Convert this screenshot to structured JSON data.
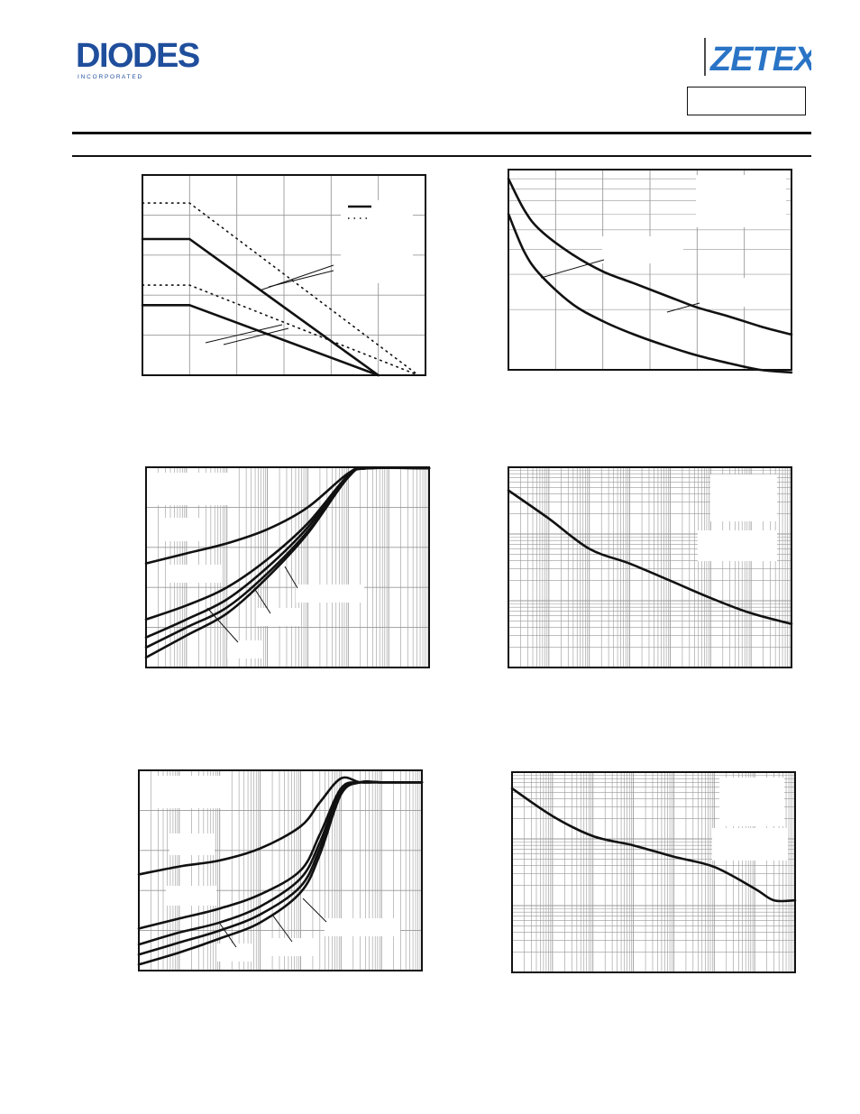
{
  "header": {
    "brand_left": "DIODES",
    "brand_left_sub": "I N C O R P O R A T E D",
    "brand_right": "ZETEX"
  },
  "colors": {
    "ink": "#111111",
    "grid": "#999999",
    "paper": "#ffffff"
  },
  "chart_data": [
    {
      "type": "line",
      "title": "",
      "xlabel": "",
      "ylabel": "",
      "x_scale": "linear",
      "y_scale": "linear",
      "grid": true,
      "legend": {
        "position": "top-right",
        "entries": [
          {
            "style": "solid"
          },
          {
            "style": "dotted"
          }
        ]
      },
      "xlim": [
        0,
        6
      ],
      "ylim": [
        0,
        5
      ],
      "series": [
        {
          "style": "dotted",
          "points": [
            [
              0,
              4.3
            ],
            [
              1,
              4.3
            ],
            [
              5.85,
              0
            ]
          ]
        },
        {
          "style": "solid",
          "points": [
            [
              0,
              3.4
            ],
            [
              1,
              3.4
            ],
            [
              5,
              0
            ]
          ]
        },
        {
          "style": "dotted",
          "points": [
            [
              0,
              2.25
            ],
            [
              1,
              2.25
            ],
            [
              5.85,
              0
            ]
          ]
        },
        {
          "style": "solid",
          "points": [
            [
              0,
              1.75
            ],
            [
              1,
              1.75
            ],
            [
              5,
              0
            ]
          ]
        }
      ]
    },
    {
      "type": "line",
      "title": "",
      "xlabel": "",
      "ylabel": "",
      "x_scale": "linear",
      "y_scale": "log",
      "grid": true,
      "xlim": [
        0,
        9
      ],
      "ylim": [
        1,
        10
      ],
      "series": [
        {
          "style": "solid",
          "points": [
            [
              0,
              9
            ],
            [
              0.5,
              6.3
            ],
            [
              1,
              5.0
            ],
            [
              2,
              3.8
            ],
            [
              3,
              3.1
            ],
            [
              4,
              2.7
            ],
            [
              5,
              2.35
            ],
            [
              6,
              2.05
            ],
            [
              7,
              1.85
            ],
            [
              8,
              1.65
            ],
            [
              9,
              1.5
            ]
          ]
        },
        {
          "style": "solid",
          "points": [
            [
              0,
              6
            ],
            [
              0.5,
              3.9
            ],
            [
              1,
              3.0
            ],
            [
              2,
              2.15
            ],
            [
              3,
              1.75
            ],
            [
              4,
              1.5
            ],
            [
              5,
              1.32
            ],
            [
              6,
              1.18
            ],
            [
              7,
              1.08
            ],
            [
              8,
              1.0
            ],
            [
              9,
              0.97
            ]
          ]
        }
      ]
    },
    {
      "type": "line",
      "title": "",
      "xlabel": "",
      "ylabel": "",
      "x_scale": "log",
      "y_scale": "linear",
      "grid": true,
      "xlim": [
        0.0001,
        1000
      ],
      "ylim": [
        0,
        100
      ],
      "series": [
        {
          "style": "solid",
          "points": [
            [
              0.0001,
              52
            ],
            [
              0.001,
              57
            ],
            [
              0.01,
              62
            ],
            [
              0.1,
              69
            ],
            [
              1,
              80
            ],
            [
              10,
              97
            ],
            [
              30,
              99.5
            ],
            [
              1000,
              99.5
            ]
          ]
        },
        {
          "style": "solid",
          "points": [
            [
              0.0001,
              24
            ],
            [
              0.001,
              31
            ],
            [
              0.01,
              40
            ],
            [
              0.1,
              54
            ],
            [
              1,
              72
            ],
            [
              10,
              96
            ],
            [
              30,
              99.5
            ],
            [
              1000,
              99.5
            ]
          ]
        },
        {
          "style": "solid",
          "points": [
            [
              0.0001,
              15
            ],
            [
              0.001,
              24
            ],
            [
              0.01,
              34
            ],
            [
              0.1,
              50
            ],
            [
              1,
              70
            ],
            [
              10,
              96
            ],
            [
              30,
              99.5
            ],
            [
              1000,
              99.5
            ]
          ]
        },
        {
          "style": "solid",
          "points": [
            [
              0.0001,
              10
            ],
            [
              0.001,
              20
            ],
            [
              0.01,
              30
            ],
            [
              0.1,
              47
            ],
            [
              1,
              68
            ],
            [
              10,
              95
            ],
            [
              30,
              99.5
            ],
            [
              1000,
              99.5
            ]
          ]
        },
        {
          "style": "solid",
          "points": [
            [
              0.0001,
              5
            ],
            [
              0.001,
              16
            ],
            [
              0.01,
              27
            ],
            [
              0.1,
              45
            ],
            [
              1,
              67
            ],
            [
              10,
              95
            ],
            [
              30,
              99.5
            ],
            [
              1000,
              99.5
            ]
          ]
        }
      ]
    },
    {
      "type": "line",
      "title": "",
      "xlabel": "",
      "ylabel": "",
      "x_scale": "log",
      "y_scale": "log",
      "grid": true,
      "xlim": [
        0.0001,
        1000
      ],
      "ylim": [
        1,
        1000
      ],
      "series": [
        {
          "style": "solid",
          "points": [
            [
              0.0001,
              450
            ],
            [
              0.001,
              170
            ],
            [
              0.01,
              60
            ],
            [
              0.1,
              36
            ],
            [
              1,
              20
            ],
            [
              10,
              11
            ],
            [
              100,
              6.5
            ],
            [
              1000,
              4.5
            ]
          ]
        }
      ]
    },
    {
      "type": "line",
      "title": "",
      "xlabel": "",
      "ylabel": "",
      "x_scale": "log",
      "y_scale": "linear",
      "grid": true,
      "xlim": [
        0.0001,
        1000
      ],
      "ylim": [
        0,
        100
      ],
      "series": [
        {
          "style": "solid",
          "points": [
            [
              0.0001,
              48
            ],
            [
              0.001,
              52
            ],
            [
              0.01,
              55
            ],
            [
              0.1,
              61
            ],
            [
              1,
              72
            ],
            [
              3,
              84
            ],
            [
              10,
              96
            ],
            [
              30,
              94
            ],
            [
              100,
              94
            ],
            [
              1000,
              94
            ]
          ]
        },
        {
          "style": "solid",
          "points": [
            [
              0.0001,
              21
            ],
            [
              0.001,
              26
            ],
            [
              0.01,
              31
            ],
            [
              0.1,
              38
            ],
            [
              1,
              50
            ],
            [
              3,
              68
            ],
            [
              10,
              91
            ],
            [
              30,
              94
            ],
            [
              100,
              94
            ],
            [
              1000,
              94
            ]
          ]
        },
        {
          "style": "solid",
          "points": [
            [
              0.0001,
              13
            ],
            [
              0.001,
              19
            ],
            [
              0.01,
              24
            ],
            [
              0.1,
              32
            ],
            [
              1,
              46
            ],
            [
              3,
              64
            ],
            [
              10,
              90
            ],
            [
              30,
              94
            ],
            [
              100,
              94
            ],
            [
              1000,
              94
            ]
          ]
        },
        {
          "style": "solid",
          "points": [
            [
              0.0001,
              8
            ],
            [
              0.001,
              14
            ],
            [
              0.01,
              20
            ],
            [
              0.1,
              28
            ],
            [
              1,
              42
            ],
            [
              3,
              61
            ],
            [
              10,
              89
            ],
            [
              30,
              94
            ],
            [
              100,
              94
            ],
            [
              1000,
              94
            ]
          ]
        },
        {
          "style": "solid",
          "points": [
            [
              0.0001,
              3
            ],
            [
              0.001,
              9
            ],
            [
              0.01,
              16
            ],
            [
              0.1,
              24
            ],
            [
              1,
              39
            ],
            [
              3,
              58
            ],
            [
              10,
              88
            ],
            [
              30,
              94
            ],
            [
              100,
              94
            ],
            [
              1000,
              94
            ]
          ]
        }
      ]
    },
    {
      "type": "line",
      "title": "",
      "xlabel": "",
      "ylabel": "",
      "x_scale": "log",
      "y_scale": "log",
      "grid": true,
      "xlim": [
        0.0001,
        1000
      ],
      "ylim": [
        1,
        1000
      ],
      "series": [
        {
          "style": "solid",
          "points": [
            [
              0.0001,
              570
            ],
            [
              0.001,
              220
            ],
            [
              0.01,
              110
            ],
            [
              0.1,
              80
            ],
            [
              1,
              54
            ],
            [
              10,
              38
            ],
            [
              100,
              18
            ],
            [
              300,
              12
            ],
            [
              1000,
              12
            ]
          ]
        }
      ]
    }
  ]
}
